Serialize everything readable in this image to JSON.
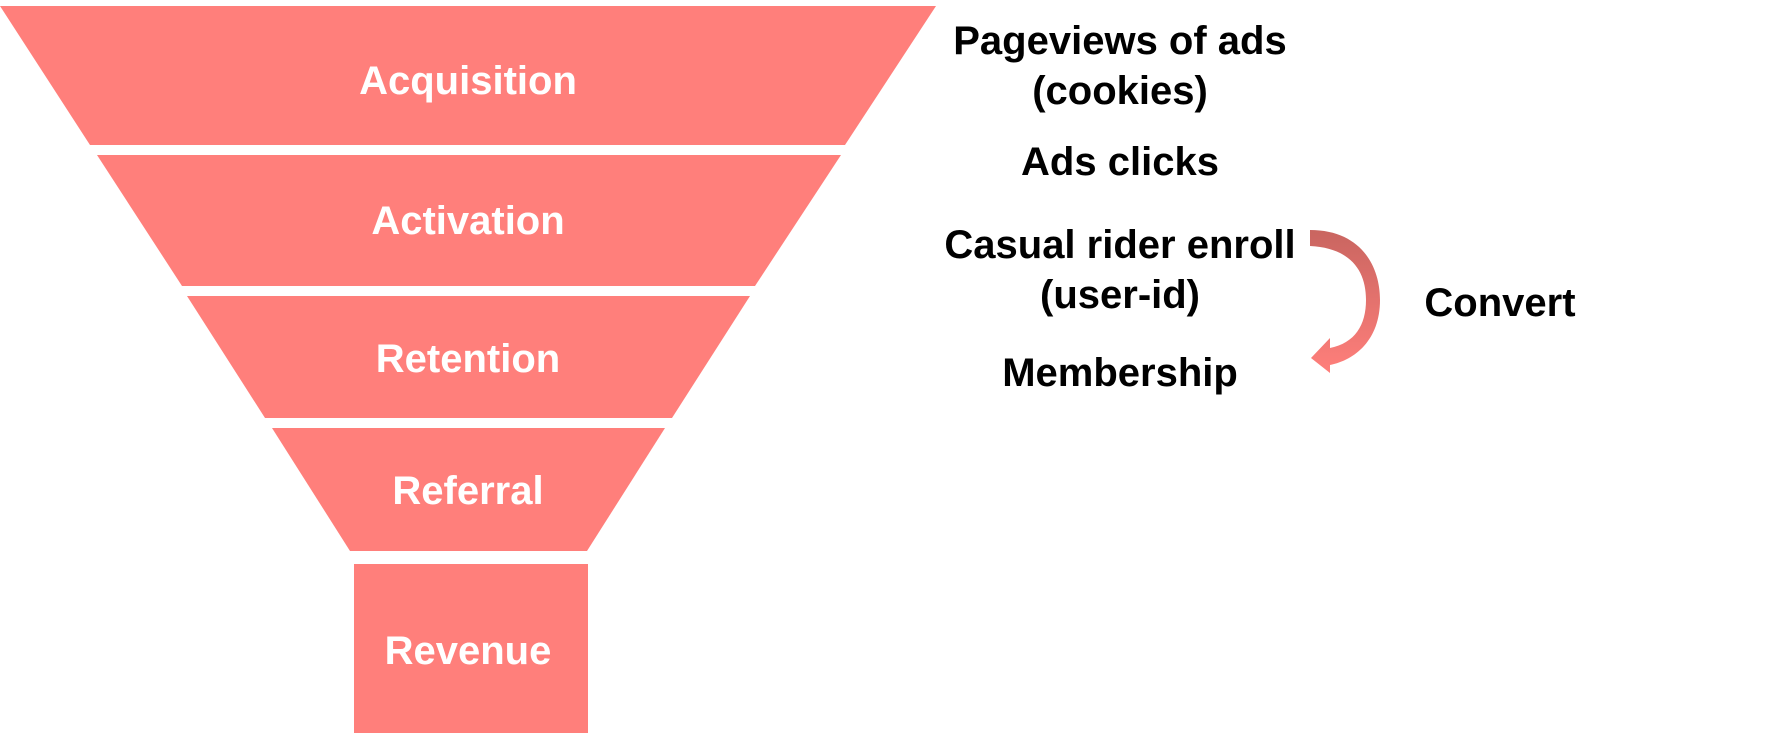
{
  "funnel": {
    "color": "#ff7f7b",
    "stages": [
      {
        "label": "Acquisition",
        "metric": "Pageviews of ads\n(cookies)"
      },
      {
        "label": "Activation",
        "metric": "Ads clicks"
      },
      {
        "label": "Retention",
        "metric": "Casual rider enroll\n(user-id)"
      },
      {
        "label": "Referral",
        "metric": "Membership"
      },
      {
        "label": "Revenue",
        "metric": ""
      }
    ]
  },
  "convert": {
    "label": "Convert",
    "arrow_color_dark": "#c96560",
    "arrow_color_light": "#ff7f7b"
  }
}
